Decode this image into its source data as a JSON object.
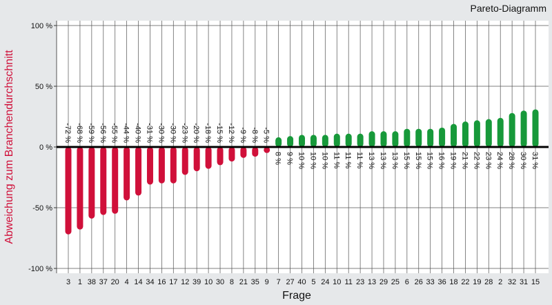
{
  "chart_data": {
    "type": "bar",
    "title": "Pareto-Diagramm",
    "x_label": "Frage",
    "y_label": "Abweichung zum Branchendurchschnitt",
    "categories": [
      "3",
      "1",
      "38",
      "37",
      "20",
      "4",
      "14",
      "34",
      "16",
      "17",
      "12",
      "39",
      "10",
      "30",
      "8",
      "21",
      "35",
      "9",
      "7",
      "27",
      "40",
      "5",
      "24",
      "10",
      "11",
      "23",
      "13",
      "29",
      "25",
      "6",
      "26",
      "33",
      "36",
      "18",
      "22",
      "19",
      "28",
      "2",
      "32",
      "31",
      "15"
    ],
    "values": [
      -72,
      -68,
      -59,
      -56,
      -55,
      -44,
      -40,
      -31,
      -30,
      -30,
      -23,
      -20,
      -18,
      -15,
      -12,
      -9,
      -8,
      -5,
      8,
      9,
      10,
      10,
      10,
      11,
      11,
      11,
      13,
      13,
      13,
      15,
      15,
      15,
      16,
      19,
      21,
      22,
      23,
      24,
      28,
      30,
      31
    ],
    "value_labels": [
      "-72 %",
      "-68 %",
      "-59 %",
      "-56 %",
      "-55 %",
      "-44 %",
      "-40 %",
      "-31 %",
      "-30 %",
      "-30 %",
      "-23 %",
      "-20 %",
      "-18 %",
      "-15 %",
      "-12 %",
      "-9 %",
      "-8 %",
      "-5 %",
      "8 %",
      "9 %",
      "10 %",
      "10 %",
      "10 %",
      "11 %",
      "11 %",
      "11 %",
      "13 %",
      "13 %",
      "13 %",
      "15 %",
      "15 %",
      "15 %",
      "16 %",
      "19 %",
      "21 %",
      "22 %",
      "23 %",
      "24 %",
      "28 %",
      "30 %",
      "31 %"
    ],
    "color_negative": "#d0103a",
    "color_positive": "#17993a",
    "ylim": [
      -100,
      100
    ],
    "yticks": [
      {
        "value": -100,
        "label": "-100 %"
      },
      {
        "value": -50,
        "label": "-50 %"
      },
      {
        "value": 0,
        "label": "0 %"
      },
      {
        "value": 50,
        "label": "50 %"
      },
      {
        "value": 100,
        "label": "100 %"
      }
    ],
    "grid": true
  }
}
